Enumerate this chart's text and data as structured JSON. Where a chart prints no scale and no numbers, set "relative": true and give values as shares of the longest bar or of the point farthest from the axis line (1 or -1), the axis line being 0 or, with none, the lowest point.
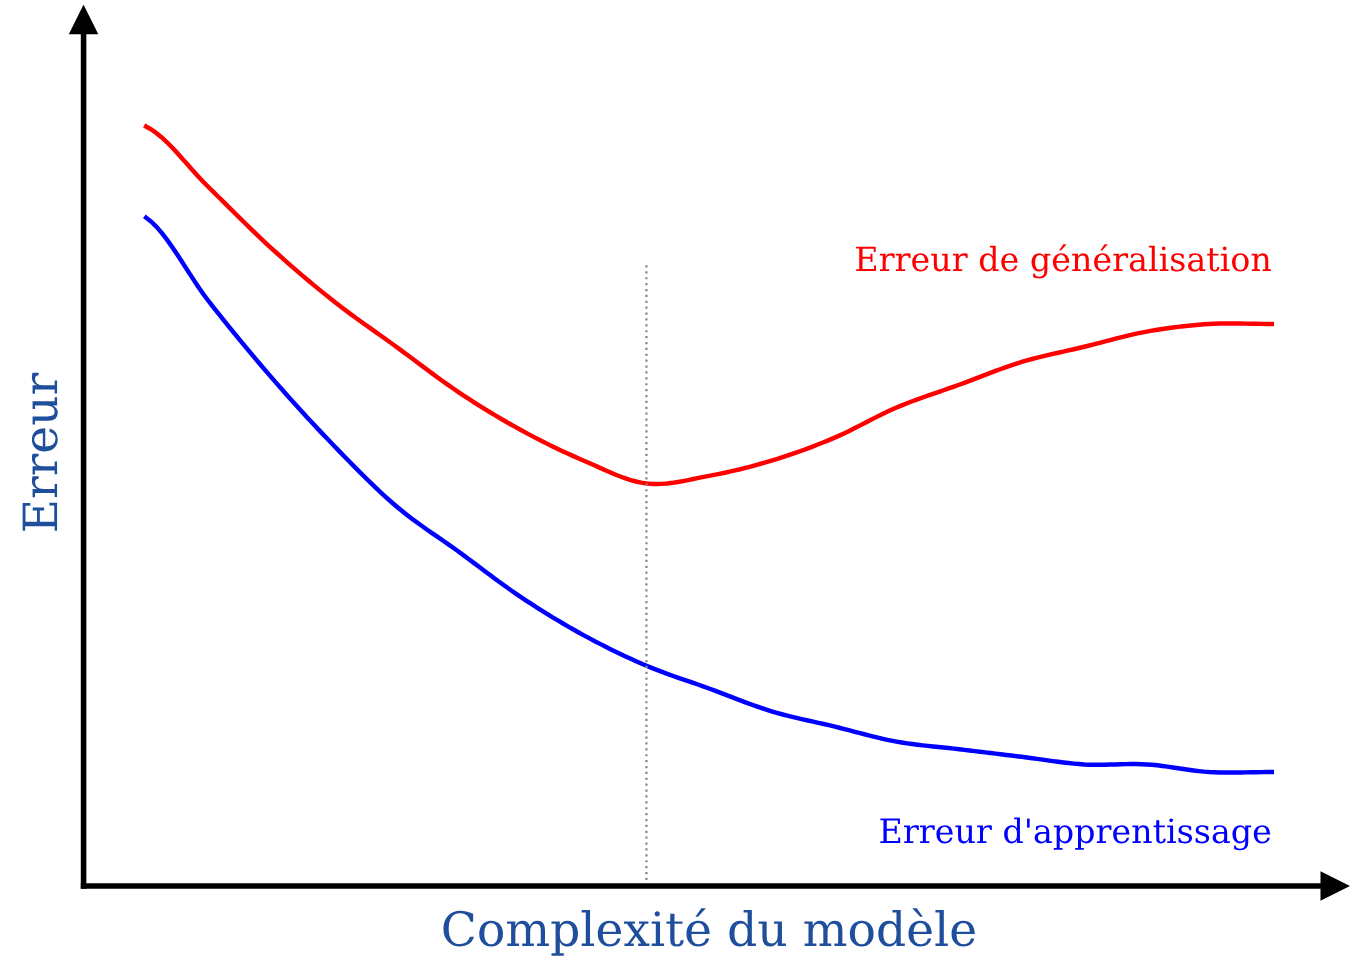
{
  "chart_data": {
    "type": "line",
    "relative": true,
    "xlabel": "Complexité du modèle",
    "ylabel": "Erreur",
    "categories": [
      null,
      null,
      null,
      null,
      null,
      null,
      null,
      null,
      null,
      null,
      null,
      null,
      null,
      null,
      null,
      null,
      null,
      null,
      null
    ],
    "series": [
      {
        "name": "Erreur de généralisation",
        "color": "#ff0000",
        "values": [
          1.0,
          0.92,
          0.84,
          0.77,
          0.71,
          0.65,
          0.6,
          0.56,
          0.53,
          0.54,
          0.56,
          0.59,
          0.63,
          0.66,
          0.69,
          0.71,
          0.73,
          0.74,
          0.74
        ]
      },
      {
        "name": "Erreur d'apprentissage",
        "color": "#0000ff",
        "values": [
          0.88,
          0.77,
          0.67,
          0.58,
          0.5,
          0.44,
          0.38,
          0.33,
          0.29,
          0.26,
          0.23,
          0.21,
          0.19,
          0.18,
          0.17,
          0.16,
          0.16,
          0.15,
          0.15
        ]
      }
    ],
    "marker": "none",
    "line_style": "solid"
  }
}
